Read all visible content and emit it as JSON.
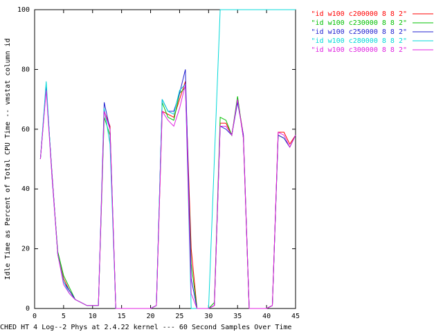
{
  "chart_data": {
    "type": "line",
    "xlabel": "CHED HT 4 Log--2 Phys at 2.4.22 kernel --- 60 Second Samples Over Time",
    "ylabel": "Idle Time as Percent of Total CPU Time -- vmstat column id",
    "x": [
      1,
      2,
      3,
      4,
      5,
      6,
      7,
      8,
      9,
      10,
      11,
      12,
      13,
      14,
      15,
      16,
      17,
      18,
      19,
      20,
      21,
      22,
      23,
      24,
      25,
      26,
      27,
      28,
      29,
      30,
      31,
      32,
      33,
      34,
      35,
      36,
      37,
      38,
      39,
      40,
      41,
      42,
      43,
      44,
      45
    ],
    "series": [
      {
        "name": "\"id w100 c200000 8 8 2\"",
        "color": "#ff0000",
        "values": [
          50,
          74,
          45,
          18,
          10,
          6,
          3,
          2,
          1,
          1,
          1,
          66,
          61,
          0,
          0,
          0,
          0,
          0,
          0,
          0,
          1,
          66,
          65,
          64,
          70,
          76,
          20,
          0,
          0,
          0,
          1,
          62,
          62,
          58,
          70,
          58,
          0,
          0,
          0,
          0,
          1,
          59,
          59,
          55,
          58
        ]
      },
      {
        "name": "\"id w100 c230000 8 8 2\"",
        "color": "#00c000",
        "values": [
          50,
          75,
          44,
          19,
          11,
          7,
          3,
          2,
          1,
          1,
          1,
          64,
          58,
          0,
          0,
          0,
          0,
          0,
          0,
          0,
          1,
          69,
          64,
          63,
          72,
          74,
          15,
          0,
          0,
          0,
          2,
          64,
          63,
          58,
          71,
          57,
          0,
          0,
          0,
          0,
          1,
          58,
          57,
          54,
          58
        ]
      },
      {
        "name": "\"id w100 c250000 8 8 2\"",
        "color": "#2020d0",
        "values": [
          50,
          74,
          45,
          18,
          9,
          6,
          3,
          2,
          1,
          1,
          1,
          69,
          60,
          0,
          0,
          0,
          0,
          0,
          0,
          0,
          1,
          70,
          66,
          66,
          72,
          80,
          10,
          0,
          0,
          0,
          1,
          61,
          60,
          58,
          69,
          58,
          0,
          0,
          0,
          0,
          1,
          58,
          57,
          54,
          58
        ]
      },
      {
        "name": "\"id w100 c280000 8 8 2\"",
        "color": "#00d8d8",
        "values": [
          50,
          76,
          44,
          18,
          9,
          5,
          3,
          2,
          1,
          1,
          1,
          67,
          55,
          0,
          0,
          0,
          0,
          0,
          0,
          0,
          1,
          70,
          66,
          65,
          73,
          75,
          0,
          0,
          0,
          0,
          50,
          100,
          100,
          100,
          100,
          100,
          100,
          100,
          100,
          100,
          100,
          100,
          100,
          100,
          100
        ]
      },
      {
        "name": "\"id w100 c300000 8 8 2\"",
        "color": "#e020e0",
        "values": [
          50,
          73,
          44,
          18,
          8,
          5,
          3,
          2,
          1,
          1,
          1,
          66,
          60,
          0,
          0,
          0,
          0,
          0,
          0,
          0,
          1,
          66,
          63,
          61,
          67,
          75,
          5,
          0,
          0,
          0,
          1,
          61,
          61,
          58,
          70,
          57,
          0,
          0,
          0,
          0,
          1,
          59,
          58,
          54,
          58
        ]
      }
    ],
    "xlim": [
      0,
      45
    ],
    "xticks": [
      0,
      5,
      10,
      15,
      20,
      25,
      30,
      35,
      40,
      45
    ],
    "ylim": [
      0,
      100
    ],
    "yticks": [
      0,
      20,
      40,
      60,
      80,
      100
    ],
    "legend": "top-right"
  }
}
